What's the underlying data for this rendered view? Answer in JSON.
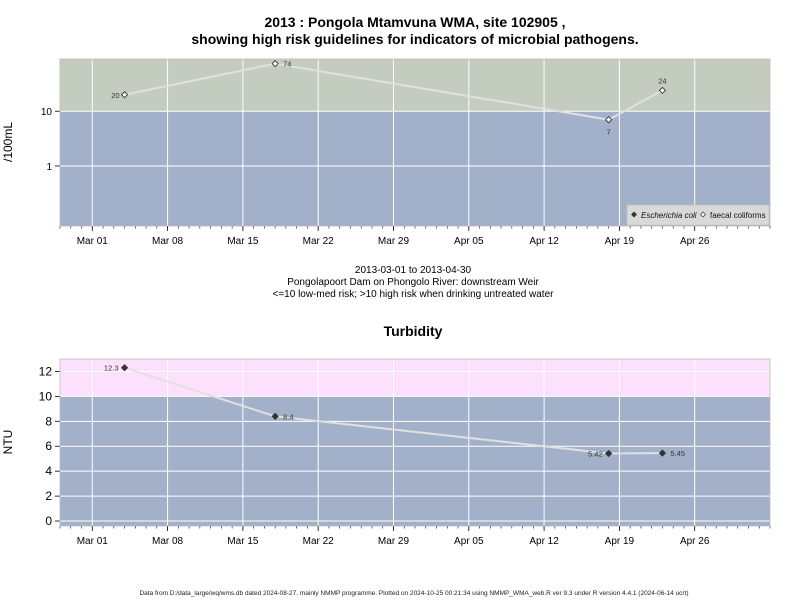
{
  "chart_data": [
    {
      "type": "line",
      "title_line1": "2013 : Pongola Mtamvuna WMA, site 102905 ,",
      "title_line2": "showing high risk guidelines for indicators of microbial pathogens.",
      "ylabel": "/100mL",
      "yscale": "log",
      "y_ticks": [
        "1",
        "10"
      ],
      "x_ticks": [
        "Mar 01",
        "Mar 08",
        "Mar 15",
        "Mar 22",
        "Mar 29",
        "Apr 05",
        "Apr 12",
        "Apr 19",
        "Apr 26"
      ],
      "xlim": [
        "2013-02-26",
        "2013-05-03"
      ],
      "ylim": [
        0.08,
        90
      ],
      "risk_band": {
        "threshold": 10,
        "above_color": "#c4ccc0",
        "below_color": "#a2b1c9"
      },
      "legend": {
        "position": "bottom-right",
        "entries": [
          "Escherichia coli",
          "faecal coliforms"
        ]
      },
      "series": [
        {
          "name": "faecal coliforms",
          "marker": "open-diamond",
          "points": [
            {
              "x": "2013-03-04",
              "y": 20,
              "label": "20"
            },
            {
              "x": "2013-03-18",
              "y": 74,
              "label": "74"
            },
            {
              "x": "2013-04-18",
              "y": 7,
              "label": "7"
            },
            {
              "x": "2013-04-23",
              "y": 24,
              "label": "24"
            }
          ]
        }
      ],
      "subtitle_lines": [
        "2013-03-01 to 2013-04-30",
        "Pongolapoort Dam on Phongolo River: downstream Weir",
        "<=10 low-med risk; >10 high risk when drinking untreated water"
      ]
    },
    {
      "type": "line",
      "title": "Turbidity",
      "ylabel": "NTU",
      "y_ticks": [
        "0",
        "2",
        "4",
        "6",
        "8",
        "10",
        "12"
      ],
      "x_ticks": [
        "Mar 01",
        "Mar 08",
        "Mar 15",
        "Mar 22",
        "Mar 29",
        "Apr 05",
        "Apr 12",
        "Apr 19",
        "Apr 26"
      ],
      "xlim": [
        "2013-02-26",
        "2013-05-03"
      ],
      "ylim": [
        -0.4,
        13
      ],
      "risk_band": {
        "threshold": 10,
        "above_color": "#fde0fb",
        "below_color": "#a2b1c9"
      },
      "series": [
        {
          "marker": "filled-diamond",
          "points": [
            {
              "x": "2013-03-04",
              "y": 12.3,
              "label": "12.3"
            },
            {
              "x": "2013-03-18",
              "y": 8.4,
              "label": "8.4"
            },
            {
              "x": "2013-04-18",
              "y": 5.42,
              "label": "5.42"
            },
            {
              "x": "2013-04-23",
              "y": 5.45,
              "label": "5.45"
            }
          ]
        }
      ]
    }
  ],
  "footer": "Data from D:/data_large/wq/wms.db dated 2024-08-27, mainly NMMP programme. Plotted on 2024-10-25 00:21:34 using NMMP_WMA_web.R ver 9.3 under R version 4.4.1 (2024-06-14 ucrt)"
}
